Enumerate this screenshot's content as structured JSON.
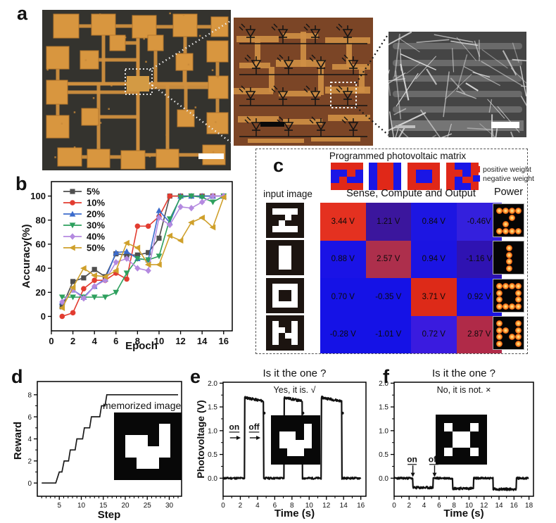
{
  "panel_labels": {
    "a": "a",
    "b": "b",
    "c": "c",
    "d": "d",
    "e": "e",
    "f": "f"
  },
  "panel_a": {
    "colors": {
      "chip_bg": "#34332e",
      "pad": "#d8963f",
      "trace": "#cf8f3e",
      "micro_bg": "#7b4526",
      "micro_trace": "#cf8f45",
      "sem_bg": "#454545",
      "sem_bar": "#6d6d6d",
      "nanowire": "#e6e6e6"
    }
  },
  "panel_c": {
    "title": "Programmed photovoltaic matrix",
    "input_label": "input image",
    "compute_label": "Sense, Compute and Output",
    "power_label": "Power",
    "legend": {
      "positive_label": "positive weight",
      "positive_color": "#e02818",
      "negative_label": "negative weight",
      "negative_color": "#1a16e6"
    },
    "letter_order": [
      "Z",
      "I",
      "O",
      "N"
    ],
    "letter_grids": {
      "Z": [
        [
          0,
          0,
          0,
          0,
          0,
          0
        ],
        [
          0,
          1,
          1,
          1,
          1,
          0
        ],
        [
          0,
          0,
          0,
          1,
          0,
          0
        ],
        [
          0,
          0,
          1,
          0,
          0,
          0
        ],
        [
          0,
          1,
          1,
          1,
          1,
          0
        ],
        [
          0,
          0,
          0,
          0,
          0,
          0
        ]
      ],
      "I": [
        [
          0,
          0,
          0,
          0,
          0,
          0
        ],
        [
          0,
          0,
          1,
          1,
          0,
          0
        ],
        [
          0,
          0,
          1,
          1,
          0,
          0
        ],
        [
          0,
          0,
          1,
          1,
          0,
          0
        ],
        [
          0,
          0,
          1,
          1,
          0,
          0
        ],
        [
          0,
          0,
          0,
          0,
          0,
          0
        ]
      ],
      "O": [
        [
          0,
          0,
          0,
          0,
          0,
          0
        ],
        [
          0,
          1,
          1,
          1,
          1,
          0
        ],
        [
          0,
          1,
          0,
          0,
          1,
          0
        ],
        [
          0,
          1,
          0,
          0,
          1,
          0
        ],
        [
          0,
          1,
          1,
          1,
          1,
          0
        ],
        [
          0,
          0,
          0,
          0,
          0,
          0
        ]
      ],
      "N": [
        [
          0,
          0,
          0,
          0,
          0,
          0
        ],
        [
          0,
          1,
          0,
          0,
          1,
          0
        ],
        [
          0,
          1,
          1,
          0,
          1,
          0
        ],
        [
          0,
          1,
          0,
          1,
          1,
          0
        ],
        [
          0,
          1,
          0,
          0,
          1,
          0
        ],
        [
          0,
          0,
          0,
          0,
          0,
          0
        ]
      ]
    },
    "power_dot_patterns": {
      "Z": [
        [
          0,
          0
        ],
        [
          0,
          1
        ],
        [
          0,
          2
        ],
        [
          0,
          3
        ],
        [
          1,
          2
        ],
        [
          2,
          1
        ],
        [
          3,
          0
        ],
        [
          3,
          1
        ],
        [
          3,
          2
        ],
        [
          3,
          3
        ]
      ],
      "I": [
        [
          0,
          1.5
        ],
        [
          1,
          1.5
        ],
        [
          2,
          1.5
        ],
        [
          3,
          1.5
        ]
      ],
      "O": [
        [
          0,
          0
        ],
        [
          0,
          1
        ],
        [
          0,
          2
        ],
        [
          0,
          3
        ],
        [
          1,
          0
        ],
        [
          1,
          3
        ],
        [
          2,
          0
        ],
        [
          2,
          3
        ],
        [
          3,
          0
        ],
        [
          3,
          1
        ],
        [
          3,
          2
        ],
        [
          3,
          3
        ]
      ],
      "N": [
        [
          0,
          0
        ],
        [
          1,
          0
        ],
        [
          2,
          0
        ],
        [
          3,
          0
        ],
        [
          1,
          1
        ],
        [
          2,
          2
        ],
        [
          0,
          3
        ],
        [
          1,
          3
        ],
        [
          2,
          3
        ],
        [
          3,
          3
        ]
      ]
    },
    "matrix": {
      "values": [
        [
          "3.44 V",
          "1.21 V",
          "0.84 V",
          "-0.46V"
        ],
        [
          "0.88 V",
          "2.57 V",
          "0.94 V",
          "-1.16 V"
        ],
        [
          "0.70 V",
          "-0.35 V",
          "3.71 V",
          "0.92 V"
        ],
        [
          "-0.28 V",
          "-1.01 V",
          "0.72 V",
          "2.87 V"
        ]
      ],
      "colors": [
        [
          "#e43120",
          "#3b169d",
          "#1d16e2",
          "#3420dd"
        ],
        [
          "#1a13e6",
          "#ad2f4c",
          "#1b14e2",
          "#2f13b2"
        ],
        [
          "#1512e6",
          "#1512e6",
          "#dd2a18",
          "#1b14e0"
        ],
        [
          "#1512e6",
          "#1512e6",
          "#3a1bdf",
          "#b02a48"
        ]
      ]
    }
  },
  "insets": {
    "memorized_label": "memorized image",
    "memorized_grid": [
      [
        0,
        0,
        0,
        0,
        0,
        0
      ],
      [
        0,
        0,
        0,
        0,
        1,
        0
      ],
      [
        0,
        1,
        1,
        0,
        1,
        0
      ],
      [
        0,
        1,
        1,
        1,
        1,
        0
      ],
      [
        0,
        0,
        1,
        1,
        0,
        0
      ],
      [
        0,
        0,
        0,
        0,
        0,
        0
      ]
    ],
    "nonmatch_grid": [
      [
        0,
        0,
        0,
        0,
        0,
        0
      ],
      [
        0,
        1,
        0,
        0,
        1,
        0
      ],
      [
        0,
        0,
        1,
        1,
        0,
        0
      ],
      [
        0,
        0,
        1,
        1,
        0,
        0
      ],
      [
        0,
        1,
        0,
        0,
        1,
        0
      ],
      [
        0,
        0,
        0,
        0,
        0,
        0
      ]
    ]
  },
  "chart_data": [
    {
      "id": "accuracy",
      "type": "line",
      "title": "",
      "xlabel": "Epoch",
      "ylabel": "Accuracy(%)",
      "xlim": [
        0,
        16.8
      ],
      "ylim": [
        -12,
        112
      ],
      "xticks": [
        0,
        2,
        4,
        6,
        8,
        10,
        12,
        14,
        16
      ],
      "yticks": [
        0,
        20,
        40,
        60,
        80,
        100
      ],
      "x": [
        1,
        2,
        3,
        4,
        5,
        6,
        7,
        8,
        9,
        10,
        11,
        12,
        13,
        14,
        15,
        16
      ],
      "series": [
        {
          "name": "5%",
          "color": "#4f4f4f",
          "marker": "square",
          "values": [
            8,
            29,
            32,
            39,
            33,
            52,
            51,
            51,
            53,
            65,
            100,
            100,
            100,
            100,
            100,
            100
          ]
        },
        {
          "name": "10%",
          "color": "#e23c30",
          "marker": "circle",
          "values": [
            0,
            3,
            23,
            30,
            30,
            36,
            31,
            75,
            75,
            83,
            100,
            100,
            100,
            100,
            100,
            100
          ]
        },
        {
          "name": "20%",
          "color": "#3b6bcc",
          "marker": "triangle-up",
          "values": [
            12,
            22,
            16,
            25,
            31,
            53,
            54,
            48,
            47,
            88,
            78,
            100,
            100,
            100,
            100,
            100
          ]
        },
        {
          "name": "30%",
          "color": "#2ea05e",
          "marker": "triangle-down",
          "values": [
            16,
            16,
            16,
            16,
            16,
            20,
            36,
            48,
            47,
            50,
            81,
            99,
            100,
            99,
            95,
            100
          ]
        },
        {
          "name": "40%",
          "color": "#b48ae0",
          "marker": "diamond",
          "values": [
            12,
            22,
            15,
            25,
            30,
            45,
            48,
            40,
            38,
            82,
            76,
            91,
            90,
            95,
            100,
            100
          ]
        },
        {
          "name": "50%",
          "color": "#cfa02b",
          "marker": "triangle-left",
          "values": [
            7,
            24,
            40,
            34,
            33,
            38,
            61,
            57,
            43,
            43,
            67,
            63,
            78,
            82,
            74,
            99
          ]
        }
      ],
      "legend_position": "top-left",
      "grid": false
    },
    {
      "id": "reward",
      "type": "line",
      "title": "",
      "xlabel": "Step",
      "ylabel": "Reward",
      "xlim": [
        0,
        32.8
      ],
      "ylim": [
        -1.2,
        9.2
      ],
      "xticks": [
        5,
        10,
        15,
        20,
        25,
        30
      ],
      "yticks": [
        0,
        2,
        4,
        6,
        8
      ],
      "points": [
        [
          1,
          0
        ],
        [
          4.2,
          0
        ],
        [
          5,
          1
        ],
        [
          5.6,
          1
        ],
        [
          6.1,
          2
        ],
        [
          7.1,
          2
        ],
        [
          7.5,
          3
        ],
        [
          8.6,
          3
        ],
        [
          9,
          4
        ],
        [
          10.3,
          4
        ],
        [
          10.7,
          5
        ],
        [
          11.9,
          5
        ],
        [
          12.3,
          6
        ],
        [
          14.2,
          6
        ],
        [
          14.6,
          7
        ],
        [
          15.4,
          7
        ],
        [
          15.8,
          8
        ],
        [
          32,
          8
        ]
      ],
      "line_color": "#1a1a1a",
      "grid": false
    },
    {
      "id": "recognition_yes",
      "type": "line",
      "title": "Is it the one ?",
      "subtitle": "Yes, it is. √",
      "xlabel": "Time (s)",
      "ylabel": "Photovoltage (V)",
      "xlim": [
        0,
        16.6
      ],
      "ylim": [
        -0.38,
        2.02
      ],
      "xticks": [
        0,
        2,
        4,
        6,
        8,
        10,
        12,
        14,
        16
      ],
      "yticks": [
        0.0,
        0.5,
        1.0,
        1.5,
        2.0
      ],
      "ytick_labels": [
        "0.0",
        "0.5",
        "1.0",
        "1.5",
        "2.0"
      ],
      "baseline": 0.0,
      "high_level": 1.65,
      "pulses": [
        [
          2.5,
          4.7
        ],
        [
          7.1,
          9.2
        ],
        [
          11.4,
          13.8
        ]
      ],
      "on_label": "on",
      "off_label": "off",
      "grid": false
    },
    {
      "id": "recognition_no",
      "type": "line",
      "title": "Is it the one ?",
      "subtitle": "No, it is not. ×",
      "xlabel": "Time (s)",
      "ylabel": "",
      "xlim": [
        0,
        18.6
      ],
      "ylim": [
        -0.38,
        2.02
      ],
      "xticks": [
        0,
        2,
        4,
        6,
        8,
        10,
        12,
        14,
        16,
        18
      ],
      "yticks": [
        0.0,
        0.5,
        1.0,
        1.5,
        2.0
      ],
      "ytick_labels": [
        "0.0",
        "0.5",
        "1.0",
        "1.5",
        "2.0"
      ],
      "baseline": 0.0,
      "high_level": -0.2,
      "pulses": [
        [
          2.5,
          5.2
        ],
        [
          7.8,
          10.6
        ],
        [
          13.2,
          16.3
        ]
      ],
      "on_label": "on",
      "off_label": "off",
      "grid": false
    }
  ]
}
